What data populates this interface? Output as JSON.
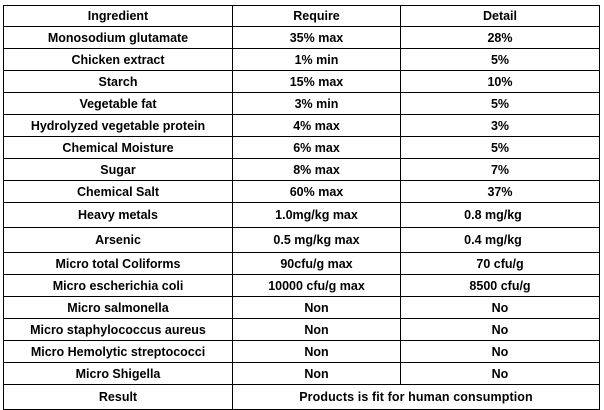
{
  "table": {
    "headers": {
      "ingredient": "Ingredient",
      "require": "Require",
      "detail": "Detail"
    },
    "rows": [
      {
        "ingredient": "Monosodium glutamate",
        "require": "35% max",
        "detail": "28%"
      },
      {
        "ingredient": "Chicken extract",
        "require": "1% min",
        "detail": "5%"
      },
      {
        "ingredient": "Starch",
        "require": "15% max",
        "detail": "10%"
      },
      {
        "ingredient": "Vegetable fat",
        "require": "3% min",
        "detail": "5%"
      },
      {
        "ingredient": "Hydrolyzed vegetable protein",
        "require": "4% max",
        "detail": "3%"
      },
      {
        "ingredient": "Chemical Moisture",
        "require": "6% max",
        "detail": "5%"
      },
      {
        "ingredient": "Sugar",
        "require": "8% max",
        "detail": "7%"
      },
      {
        "ingredient": "Chemical Salt",
        "require": "60% max",
        "detail": "37%"
      },
      {
        "ingredient": "Heavy metals",
        "require": "1.0mg/kg max",
        "detail": "0.8 mg/kg"
      },
      {
        "ingredient": "Arsenic",
        "require": "0.5 mg/kg max",
        "detail": "0.4 mg/kg"
      },
      {
        "ingredient": "Micro total Coliforms",
        "require": "90cfu/g max",
        "detail": "70 cfu/g"
      },
      {
        "ingredient": "Micro escherichia coli",
        "require": "10000 cfu/g max",
        "detail": "8500 cfu/g"
      },
      {
        "ingredient": "Micro salmonella",
        "require": "Non",
        "detail": "No"
      },
      {
        "ingredient": "Micro staphylococcus aureus",
        "require": "Non",
        "detail": "No"
      },
      {
        "ingredient": "Micro Hemolytic streptococci",
        "require": "Non",
        "detail": "No"
      },
      {
        "ingredient": "Micro Shigella",
        "require": "Non",
        "detail": "No"
      }
    ],
    "result": {
      "label": "Result",
      "value": "Products is fit for human consumption"
    }
  }
}
